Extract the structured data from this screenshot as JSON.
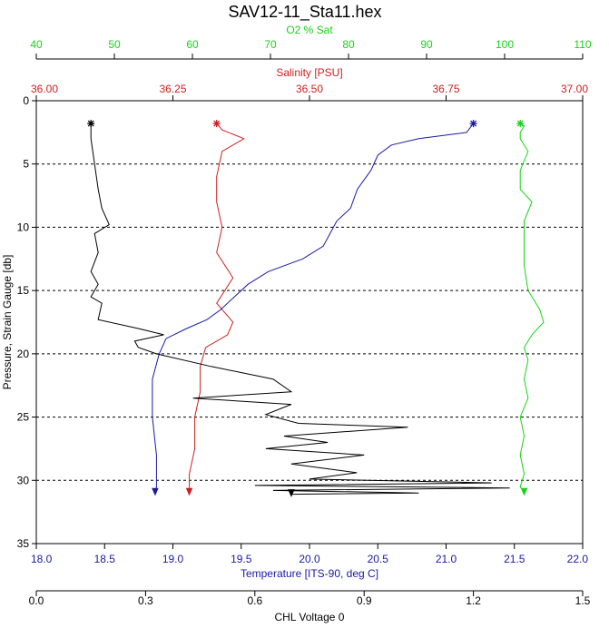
{
  "title": "SAV12-11_Sta11.hex",
  "colors": {
    "o2": "#19d219",
    "salinity": "#cc2020",
    "temperature": "#1a1aa0",
    "chl": "#000000",
    "frame": "#000000",
    "grid": "#000000"
  },
  "chart_data": {
    "type": "line",
    "title": "SAV12-11_Sta11.hex",
    "y_axis": {
      "label": "Pressure, Strain Gauge [db]",
      "range": [
        0,
        35
      ],
      "inverted": true,
      "ticks": [
        "0",
        "5",
        "10",
        "15",
        "20",
        "25",
        "30",
        "35"
      ],
      "tick_values": [
        0,
        5,
        10,
        15,
        20,
        25,
        30,
        35
      ]
    },
    "grid": {
      "horizontal_dashed_at": [
        5,
        10,
        15,
        20,
        25,
        30
      ],
      "vertical": false
    },
    "x_axes": [
      {
        "id": "o2",
        "position": "top-outer",
        "label": "O2 % Sat",
        "range": [
          40,
          110
        ],
        "ticks": [
          "40",
          "50",
          "60",
          "70",
          "80",
          "90",
          "100",
          "110"
        ],
        "tick_values": [
          40,
          50,
          60,
          70,
          80,
          90,
          100,
          110
        ]
      },
      {
        "id": "salinity",
        "position": "top-inner",
        "label": "Salinity [PSU]",
        "range": [
          36.0,
          37.0
        ],
        "ticks": [
          "36.00",
          "36.25",
          "36.50",
          "36.75",
          "37.00"
        ],
        "tick_values": [
          36.0,
          36.25,
          36.5,
          36.75,
          37.0
        ]
      },
      {
        "id": "temperature",
        "position": "bottom-inner",
        "label": "Temperature [ITS-90, deg C]",
        "range": [
          18.0,
          22.0
        ],
        "ticks": [
          "18.0",
          "18.5",
          "19.0",
          "19.5",
          "20.0",
          "20.5",
          "21.0",
          "21.5",
          "22.0"
        ],
        "tick_values": [
          18.0,
          18.5,
          19.0,
          19.5,
          20.0,
          20.5,
          21.0,
          21.5,
          22.0
        ]
      },
      {
        "id": "chl",
        "position": "bottom-outer",
        "label": "CHL Voltage 0",
        "range": [
          0.0,
          1.5
        ],
        "ticks": [
          "0.0",
          "0.3",
          "0.6",
          "0.9",
          "1.2",
          "1.5"
        ],
        "tick_values": [
          0.0,
          0.3,
          0.6,
          0.9,
          1.2,
          1.5
        ]
      }
    ],
    "series": [
      {
        "axis": "o2",
        "points": [
          [
            102.0,
            1.8
          ],
          [
            102.5,
            2.0
          ],
          [
            102.0,
            2.5
          ],
          [
            102.0,
            3.0
          ],
          [
            103.0,
            4.0
          ],
          [
            102.0,
            5.5
          ],
          [
            102.0,
            7.0
          ],
          [
            103.5,
            8.0
          ],
          [
            102.5,
            9.5
          ],
          [
            102.5,
            11.0
          ],
          [
            102.5,
            13.0
          ],
          [
            103.0,
            15.0
          ],
          [
            104.5,
            16.5
          ],
          [
            105.0,
            17.5
          ],
          [
            103.5,
            18.5
          ],
          [
            102.5,
            19.5
          ],
          [
            103.0,
            20.5
          ],
          [
            102.5,
            22.0
          ],
          [
            103.0,
            23.5
          ],
          [
            102.0,
            25.0
          ],
          [
            102.5,
            26.5
          ],
          [
            102.0,
            28.0
          ],
          [
            102.5,
            29.5
          ],
          [
            102.0,
            30.5
          ],
          [
            102.5,
            31.0
          ]
        ]
      },
      {
        "axis": "salinity",
        "points": [
          [
            36.33,
            1.8
          ],
          [
            36.34,
            2.3
          ],
          [
            36.38,
            3.0
          ],
          [
            36.34,
            4.0
          ],
          [
            36.33,
            6.0
          ],
          [
            36.33,
            8.0
          ],
          [
            36.34,
            10.0
          ],
          [
            36.33,
            12.0
          ],
          [
            36.36,
            14.0
          ],
          [
            36.33,
            16.0
          ],
          [
            36.36,
            17.5
          ],
          [
            36.35,
            18.5
          ],
          [
            36.31,
            19.5
          ],
          [
            36.3,
            21.0
          ],
          [
            36.3,
            23.0
          ],
          [
            36.29,
            25.0
          ],
          [
            36.29,
            27.5
          ],
          [
            36.28,
            29.5
          ],
          [
            36.28,
            30.5
          ],
          [
            36.28,
            31.0
          ]
        ]
      },
      {
        "axis": "temperature",
        "points": [
          [
            21.2,
            1.8
          ],
          [
            21.15,
            2.5
          ],
          [
            20.8,
            3.0
          ],
          [
            20.6,
            3.5
          ],
          [
            20.5,
            4.3
          ],
          [
            20.45,
            5.5
          ],
          [
            20.35,
            7.0
          ],
          [
            20.3,
            8.5
          ],
          [
            20.2,
            9.5
          ],
          [
            20.15,
            10.5
          ],
          [
            20.1,
            11.5
          ],
          [
            19.95,
            12.5
          ],
          [
            19.7,
            13.5
          ],
          [
            19.55,
            14.5
          ],
          [
            19.45,
            15.5
          ],
          [
            19.35,
            16.5
          ],
          [
            19.25,
            17.3
          ],
          [
            19.1,
            18.0
          ],
          [
            18.95,
            18.8
          ],
          [
            18.9,
            20.0
          ],
          [
            18.85,
            22.0
          ],
          [
            18.85,
            25.0
          ],
          [
            18.88,
            28.0
          ],
          [
            18.88,
            30.5
          ],
          [
            18.87,
            31.0
          ]
        ]
      },
      {
        "axis": "chl",
        "points": [
          [
            0.15,
            1.8
          ],
          [
            0.15,
            3.0
          ],
          [
            0.16,
            5.0
          ],
          [
            0.17,
            7.0
          ],
          [
            0.18,
            8.5
          ],
          [
            0.2,
            9.8
          ],
          [
            0.16,
            10.5
          ],
          [
            0.17,
            12.0
          ],
          [
            0.15,
            13.5
          ],
          [
            0.17,
            14.5
          ],
          [
            0.15,
            15.5
          ],
          [
            0.18,
            16.0
          ],
          [
            0.17,
            17.3
          ],
          [
            0.28,
            18.0
          ],
          [
            0.35,
            18.5
          ],
          [
            0.27,
            19.0
          ],
          [
            0.28,
            19.5
          ],
          [
            0.33,
            20.0
          ],
          [
            0.48,
            21.0
          ],
          [
            0.65,
            22.0
          ],
          [
            0.7,
            23.0
          ],
          [
            0.43,
            23.5
          ],
          [
            0.7,
            24.0
          ],
          [
            0.63,
            24.8
          ],
          [
            0.72,
            25.5
          ],
          [
            1.02,
            25.8
          ],
          [
            0.68,
            26.5
          ],
          [
            0.8,
            27.0
          ],
          [
            0.63,
            27.5
          ],
          [
            0.9,
            28.0
          ],
          [
            0.7,
            28.7
          ],
          [
            0.88,
            29.4
          ],
          [
            0.75,
            29.9
          ],
          [
            1.25,
            30.2
          ],
          [
            0.6,
            30.4
          ],
          [
            1.3,
            30.6
          ],
          [
            0.65,
            30.8
          ],
          [
            1.05,
            31.0
          ],
          [
            0.7,
            31.1
          ]
        ]
      }
    ]
  }
}
